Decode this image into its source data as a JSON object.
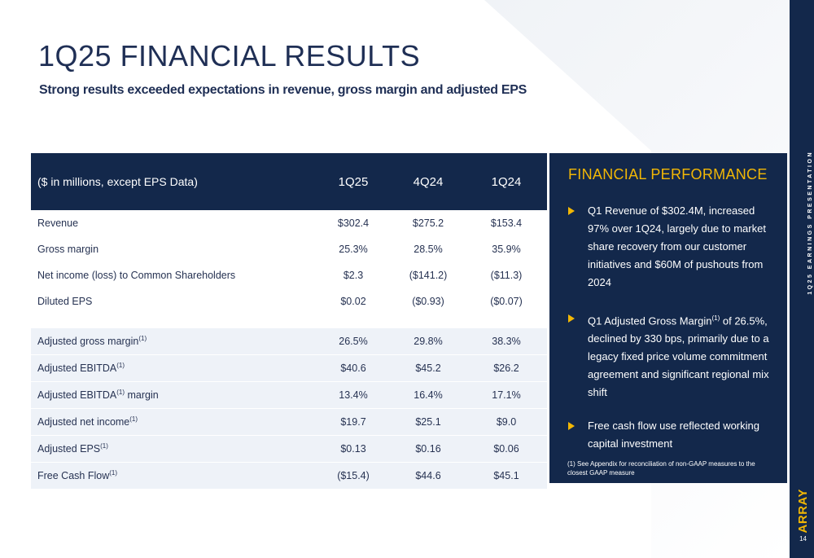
{
  "header": {
    "title": "1Q25 FINANCIAL RESULTS",
    "subtitle": "Strong results exceeded expectations in revenue, gross margin and adjusted EPS"
  },
  "side_bar": {
    "label": "1Q25 EARNINGS PRESENTATION",
    "brand": "ARRAY",
    "page_number": "14"
  },
  "table": {
    "header": [
      "($ in millions, except EPS Data)",
      "1Q25",
      "4Q24",
      "1Q24"
    ],
    "gaap_rows": [
      {
        "label": "Revenue",
        "sup": "",
        "values": [
          "$302.4",
          "$275.2",
          "$153.4"
        ]
      },
      {
        "label": "Gross margin",
        "sup": "",
        "values": [
          "25.3%",
          "28.5%",
          "35.9%"
        ]
      },
      {
        "label": "Net income (loss) to Common Shareholders",
        "sup": "",
        "values": [
          "$2.3",
          "($141.2)",
          "($11.3)"
        ]
      },
      {
        "label": "Diluted EPS",
        "sup": "",
        "values": [
          "$0.02",
          "($0.93)",
          "($0.07)"
        ]
      }
    ],
    "adjusted_rows": [
      {
        "label": "Adjusted gross margin",
        "sup": "(1)",
        "suffix": "",
        "values": [
          "26.5%",
          "29.8%",
          "38.3%"
        ]
      },
      {
        "label": "Adjusted EBITDA",
        "sup": "(1)",
        "suffix": "",
        "values": [
          "$40.6",
          "$45.2",
          "$26.2"
        ]
      },
      {
        "label": "Adjusted EBITDA",
        "sup": "(1)",
        "suffix": " margin",
        "values": [
          "13.4%",
          "16.4%",
          "17.1%"
        ]
      },
      {
        "label": "Adjusted net income",
        "sup": "(1)",
        "suffix": "",
        "values": [
          "$19.7",
          "$25.1",
          "$9.0"
        ]
      },
      {
        "label": "Adjusted EPS",
        "sup": "(1)",
        "suffix": "",
        "values": [
          "$0.13",
          "$0.16",
          "$0.06"
        ]
      },
      {
        "label": "Free Cash Flow",
        "sup": "(1)",
        "suffix": "",
        "values": [
          "($15.4)",
          "$44.6",
          "$45.1"
        ]
      }
    ]
  },
  "performance": {
    "title": "FINANCIAL PERFORMANCE",
    "bullets": [
      {
        "text": "Q1 Revenue of $302.4M, increased 97% over 1Q24, largely due to market share recovery from our customer initiatives and $60M of pushouts from 2024"
      },
      {
        "pre": "Q1 Adjusted Gross Margin",
        "sup": "(1)",
        "post": " of 26.5%, declined by 330 bps, primarily due to a legacy fixed price volume commitment agreement and significant regional mix shift"
      },
      {
        "text": "Free cash flow use reflected working capital investment"
      }
    ],
    "footnote": "(1) See Appendix for reconciliation of non-GAAP measures to the closest GAAP measure"
  },
  "colors": {
    "navy": "#13284b",
    "gold": "#f2b705",
    "row_tint": "#eef2f8"
  }
}
